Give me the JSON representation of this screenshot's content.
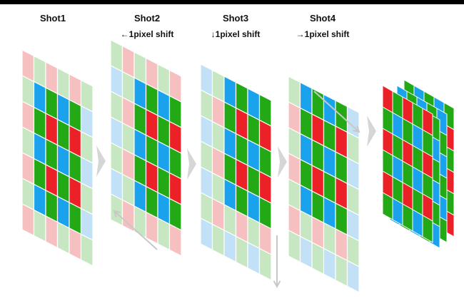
{
  "shots": [
    {
      "title": "Shot1",
      "subtitle": ""
    },
    {
      "title": "Shot2",
      "subtitle": "←1pixel shift"
    },
    {
      "title": "Shot3",
      "subtitle": "↓1pixel shift"
    },
    {
      "title": "Shot4",
      "subtitle": "→1pixel shift"
    }
  ],
  "colors": {
    "red": "#ec2027",
    "green": "#22a915",
    "blue": "#1aa3ec",
    "red_light": "#f6c0c0",
    "green_light": "#c6e7c2",
    "blue_light": "#c2e0f6",
    "arrow": "#d6d6d6",
    "guide_arrow": "#c8c8c8"
  },
  "bayer_pattern": [
    [
      "red",
      "green"
    ],
    [
      "green",
      "blue"
    ]
  ]
}
